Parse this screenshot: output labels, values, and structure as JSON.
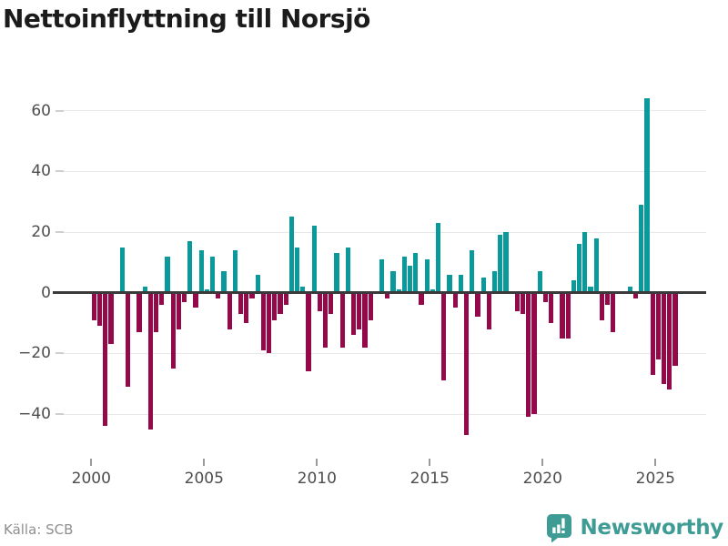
{
  "title": "Nettoinflyttning till Norsjö",
  "footer": {
    "source_label": "Källa: SCB",
    "brand_name": "Newsworthy",
    "brand_icon": "newsworthy-bubble-barchart-icon"
  },
  "colors": {
    "positive": "#0b9a9b",
    "negative": "#94094a",
    "axis": "#3a3a3a",
    "grid": "#e8e8e8",
    "title": "#1b1b1b",
    "tick_label": "#4d4d4d",
    "tick_mark": "#cfcfcf",
    "source_text": "#8f8f8f",
    "brand": "#3f9c95"
  },
  "chart_data": {
    "type": "bar",
    "title": "Nettoinflyttning till Norsjö",
    "xlabel": "",
    "ylabel": "",
    "x_unit": "quarter",
    "start_year": 2000,
    "end_year": 2025,
    "ylim": [
      -50,
      69
    ],
    "grid": true,
    "y_ticks": [
      60,
      40,
      20,
      0,
      -20,
      -40
    ],
    "x_tick_years": [
      2000,
      2005,
      2010,
      2015,
      2020,
      2025
    ],
    "x_tick_labels": [
      "2000",
      "2005",
      "2010",
      "2015",
      "2020",
      "2025"
    ],
    "series_note": "quarterly net migration values 2000Q1-2025Q4",
    "values": [
      -9,
      -11,
      -44,
      -17,
      0,
      15,
      -31,
      0,
      -13,
      2,
      -45,
      -13,
      -4,
      12,
      -25,
      -12,
      -3,
      17,
      -5,
      14,
      1,
      12,
      -2,
      7,
      -12,
      14,
      -7,
      -10,
      -2,
      6,
      -19,
      -20,
      -9,
      -7,
      -4,
      25,
      15,
      2,
      -26,
      22,
      -6,
      -18,
      -7,
      13,
      -18,
      15,
      -14,
      -12,
      -18,
      -9,
      0,
      11,
      -2,
      7,
      1,
      12,
      9,
      13,
      -4,
      11,
      1,
      23,
      -29,
      6,
      -5,
      6,
      -47,
      14,
      -8,
      5,
      -12,
      7,
      19,
      20,
      0,
      -6,
      -7,
      -41,
      -40,
      7,
      -3,
      -10,
      0,
      -15,
      -15,
      4,
      16,
      20,
      2,
      18,
      -9,
      -4,
      -13,
      0,
      0,
      2,
      -2,
      29,
      64,
      -27,
      -22,
      -30,
      -32,
      -24
    ]
  }
}
